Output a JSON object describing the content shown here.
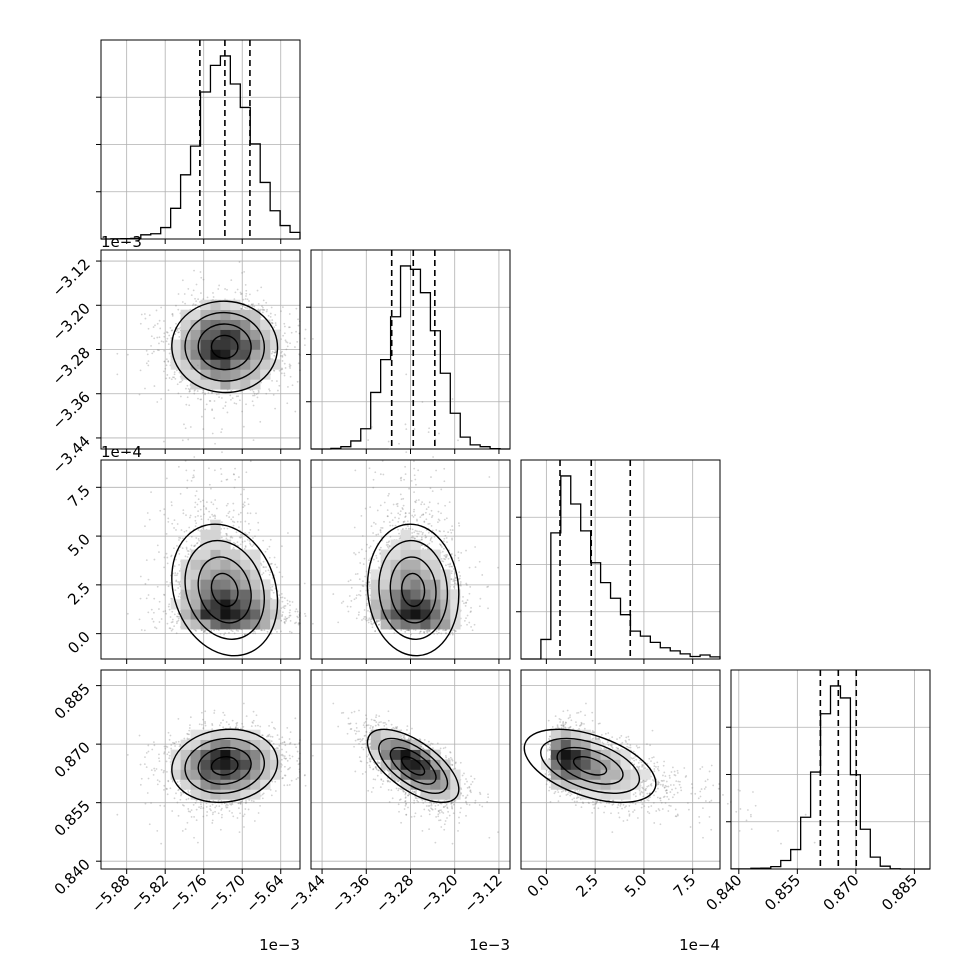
{
  "chart_data": {
    "type": "corner",
    "figure": "corner plot of a 4-parameter posterior sample",
    "params": [
      {
        "index": 0,
        "range": [
          -5.92,
          -5.61
        ],
        "ticks": [
          -5.88,
          -5.82,
          -5.76,
          -5.7,
          -5.64
        ],
        "tick_labels": [
          "−5.88",
          "−5.82",
          "−5.76",
          "−5.70",
          "−5.64"
        ],
        "offset_text": "1e−3",
        "mean": -5.727,
        "sd": 0.042,
        "quantiles": [
          -5.766,
          -5.727,
          -5.688
        ]
      },
      {
        "index": 1,
        "range": [
          -3.46,
          -3.1
        ],
        "ticks": [
          -3.44,
          -3.36,
          -3.28,
          -3.2,
          -3.12
        ],
        "tick_labels": [
          "−3.44",
          "−3.36",
          "−3.28",
          "−3.20",
          "−3.12"
        ],
        "offset_text": "1e−3",
        "mean": -3.275,
        "sd": 0.041,
        "quantiles": [
          -3.314,
          -3.275,
          -3.236
        ]
      },
      {
        "index": 2,
        "range": [
          -1.3,
          8.9
        ],
        "ticks": [
          0.0,
          2.5,
          5.0,
          7.5
        ],
        "tick_labels": [
          "0.0",
          "2.5",
          "5.0",
          "7.5"
        ],
        "offset_text": "1e−4",
        "mode": 0.9,
        "quantiles": [
          0.7,
          2.3,
          4.3
        ]
      },
      {
        "index": 3,
        "range": [
          0.838,
          0.889
        ],
        "ticks": [
          0.84,
          0.855,
          0.87,
          0.885
        ],
        "tick_labels": [
          "0.840",
          "0.855",
          "0.870",
          "0.885"
        ],
        "offset_text": "",
        "mean": 0.8655,
        "sd": 0.0048,
        "quantiles": [
          0.8609,
          0.8655,
          0.8701
        ]
      }
    ],
    "histogram_bins": 20,
    "contour_levels": 4,
    "quantile_lines": "dashed, 16/50/84 percentiles",
    "correlations": {
      "1-0": 0.0,
      "2-0": -0.15,
      "2-1": -0.25,
      "3-0": -0.05,
      "3-1": -0.65,
      "3-2": -0.55
    },
    "grid": true,
    "colors": {
      "hist": "#000000",
      "scatter": "#808080",
      "contour": "#000000",
      "grid": "#b0b0b0"
    }
  }
}
